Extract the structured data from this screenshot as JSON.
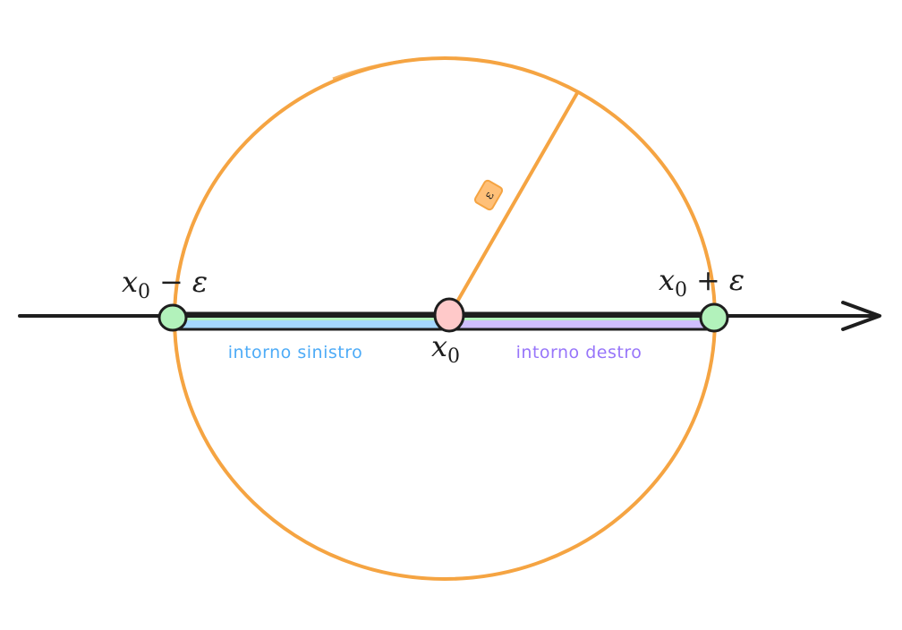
{
  "labels": {
    "left_point": {
      "var": "x",
      "sub": "0",
      "op": "−",
      "eps": "ε"
    },
    "right_point": {
      "var": "x",
      "sub": "0",
      "op": "+",
      "eps": "ε"
    },
    "center_point": {
      "var": "x",
      "sub": "0"
    },
    "radius_tag": "ε",
    "left_neighborhood": "intorno sinistro",
    "right_neighborhood": "intorno destro"
  },
  "colors": {
    "circle": "#f5a442",
    "axis": "#1e1e1e",
    "endpoint_fill": "#b2f2bb",
    "center_fill": "#ffc9c9",
    "left_band": "#a5d8ff",
    "right_band": "#d0bfff",
    "top_band": "#b2f2bb",
    "left_text": "#4dabf7",
    "right_text": "#9775fa",
    "tag_fill": "#ffc078"
  }
}
